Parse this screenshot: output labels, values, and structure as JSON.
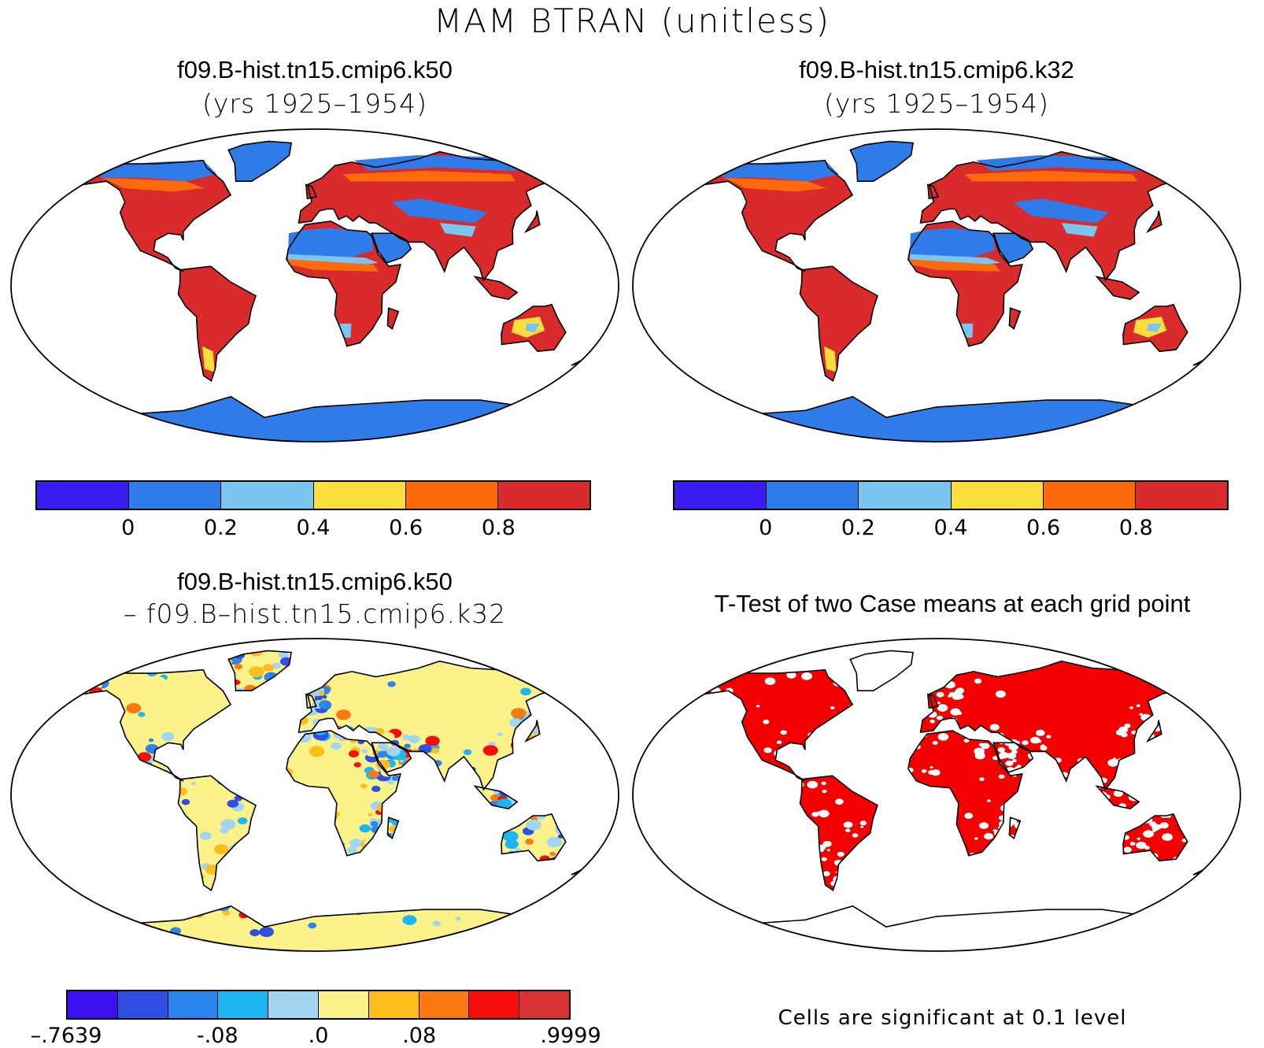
{
  "figure": {
    "title": "MAM BTRAN (unitless)"
  },
  "panels": [
    {
      "id": "k50",
      "title": "f09.B-hist.tn15.cmip6.k50",
      "subtitle": "(yrs 1925–1954)",
      "projection": "Robinson",
      "style": "climatology"
    },
    {
      "id": "k32",
      "title": "f09.B-hist.tn15.cmip6.k32",
      "subtitle": "(yrs 1925–1954)",
      "projection": "Robinson",
      "style": "climatology"
    },
    {
      "id": "diff",
      "title": "f09.B-hist.tn15.cmip6.k50",
      "subtitle": "– f09.B–hist.tn15.cmip6.k32",
      "projection": "Robinson",
      "style": "difference"
    },
    {
      "id": "ttest",
      "title": "T-Test of two Case means at each grid point",
      "subtitle": "",
      "projection": "Robinson",
      "style": "significance",
      "note": "Cells are significant at 0.1 level"
    }
  ],
  "colorbars": {
    "climatology": {
      "colors": [
        "#3b1cf0",
        "#2f7be8",
        "#7ac6ee",
        "#fbde3c",
        "#fb6a0c",
        "#d92b2b"
      ],
      "labels": [
        "0",
        "0.2",
        "0.4",
        "0.6",
        "0.8"
      ]
    },
    "difference": {
      "colors": [
        "#3b10f2",
        "#2e4fe0",
        "#2b85ee",
        "#1cb7f2",
        "#a2d6f0",
        "#fbf28a",
        "#fcbe1c",
        "#fb7a10",
        "#f80d0d",
        "#d83232"
      ],
      "labels": [
        ".7639",
        "-.08",
        ".0",
        ".08",
        ".9999"
      ],
      "label_prefix": [
        "–",
        "",
        "",
        "",
        ""
      ]
    },
    "significance": {
      "colors": [
        "#f40000"
      ]
    }
  },
  "colors": {
    "coast": "#000000",
    "ocean": "#ffffff",
    "significant": "#f40000"
  }
}
